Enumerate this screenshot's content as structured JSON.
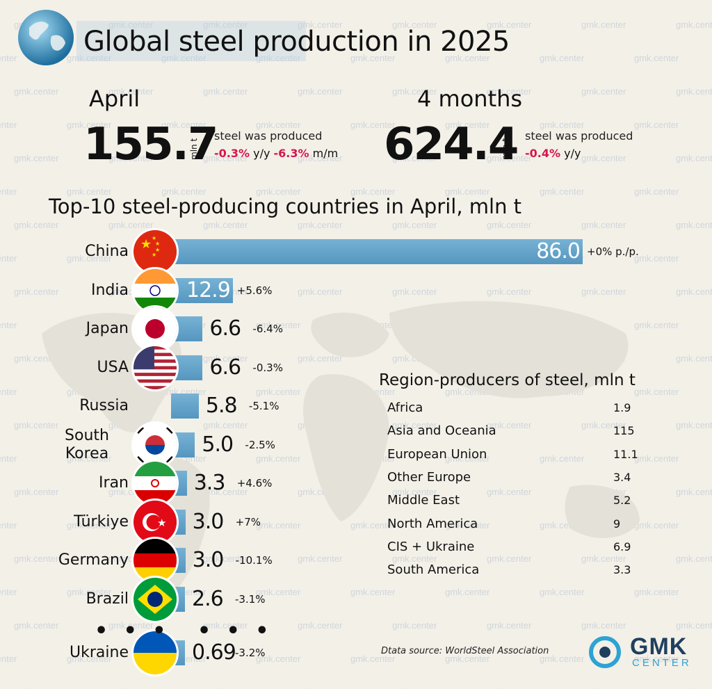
{
  "title": "Global steel production in 2025",
  "watermark": "gmk.center",
  "summary": {
    "april": {
      "period": "April",
      "value": "155.7",
      "unit": "mln t",
      "label": "steel was produced",
      "yy": "-0.3%",
      "yy_suffix": "y/y",
      "mm": "-6.3%",
      "mm_suffix": "m/m"
    },
    "months": {
      "period": "4 months",
      "value": "624.4",
      "unit": "mln t",
      "label": "steel was produced",
      "yy": "-0.4%",
      "yy_suffix": "y/y"
    }
  },
  "chart_data": [
    {
      "type": "bar",
      "title": "Top-10 steel-producing countries in April, mln t",
      "categories": [
        "China",
        "India",
        "Japan",
        "USA",
        "Russia",
        "South Korea",
        "Iran",
        "Türkiye",
        "Germany",
        "Brazil",
        "Ukraine"
      ],
      "values": [
        86.0,
        12.9,
        6.6,
        6.6,
        5.8,
        5.0,
        3.3,
        3.0,
        3.0,
        2.6,
        0.69
      ],
      "value_labels": [
        "86.0",
        "12.9",
        "6.6",
        "6.6",
        "5.8",
        "5.0",
        "3.3",
        "3.0",
        "3.0",
        "2.6",
        "0.69"
      ],
      "changes": [
        "+0% p./p.",
        "+5.6%",
        "-6.4%",
        "-0.3%",
        "-5.1%",
        "-2.5%",
        "+4.6%",
        "+7%",
        "-10.1%",
        "-3.1%",
        "-3.2%"
      ],
      "flags": [
        "china-flag",
        "india-flag",
        "japan-flag",
        "usa-flag",
        "",
        "south-korea-flag",
        "iran-flag",
        "turkiye-flag",
        "germany-flag",
        "brazil-flag",
        "ukraine-flag"
      ],
      "bar_color": "#5e9fc8"
    },
    {
      "type": "table",
      "title": "Region-producers of steel, mln t",
      "categories": [
        "Africa",
        "Asia and Oceania",
        "European Union",
        "Other Europe",
        "Middle East",
        "North America",
        "CIS + Ukraine",
        "South America"
      ],
      "values": [
        "1.9",
        "115",
        "11.1",
        "3.4",
        "5.2",
        "9",
        "6.9",
        "3.3"
      ]
    }
  ],
  "ellipsis": "• • •",
  "source": "Dtata source: WorldSteel Association",
  "logo": {
    "top": "GMK",
    "bottom": "CENTER"
  },
  "colors": {
    "negative": "#d6154d",
    "bar": "#5e9fc8",
    "logo_dark": "#1f3f5f",
    "logo_light": "#2da3d3"
  }
}
